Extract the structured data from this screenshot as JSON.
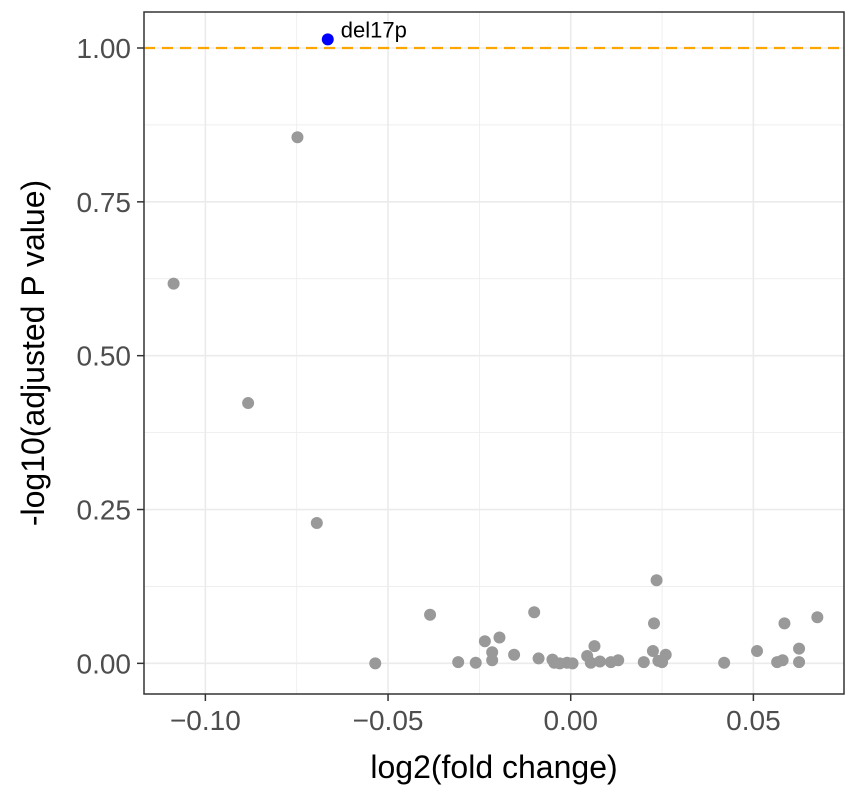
{
  "chart_data": {
    "type": "scatter",
    "title": "",
    "xlabel": "log2(fold change)",
    "ylabel": "-log10(adjusted P value)",
    "xlim": [
      -0.1168,
      0.0748
    ],
    "ylim": [
      -0.0498,
      1.0585
    ],
    "x_ticks": [
      -0.1,
      -0.05,
      0.0,
      0.05
    ],
    "x_tick_labels": [
      "−0.10",
      "−0.05",
      "0.00",
      "0.05"
    ],
    "y_ticks": [
      0.0,
      0.25,
      0.5,
      0.75,
      1.0
    ],
    "y_tick_labels": [
      "0.00",
      "0.25",
      "0.50",
      "0.75",
      "1.00"
    ],
    "grid": true,
    "threshold_line": {
      "y": 1.0,
      "color": "#FFA500",
      "style": "dashed"
    },
    "colors": {
      "default_point": "#999999",
      "highlight_point": "#0000FF",
      "panel_border": "#333333",
      "grid": "#EBEBEB"
    },
    "highlight": {
      "label": "del17p",
      "x": -0.0665,
      "y": 1.014
    },
    "points": [
      [
        -0.1087,
        0.617
      ],
      [
        -0.0883,
        0.423
      ],
      [
        -0.0748,
        0.855
      ],
      [
        -0.0695,
        0.228
      ],
      [
        -0.0535,
        0.0
      ],
      [
        -0.0385,
        0.079
      ],
      [
        -0.0308,
        0.002
      ],
      [
        -0.026,
        0.001
      ],
      [
        -0.0235,
        0.036
      ],
      [
        -0.0215,
        0.018
      ],
      [
        -0.0215,
        0.005
      ],
      [
        -0.0195,
        0.042
      ],
      [
        -0.0155,
        0.014
      ],
      [
        -0.01,
        0.083
      ],
      [
        -0.0088,
        0.008
      ],
      [
        -0.005,
        0.006
      ],
      [
        -0.0045,
        0.001
      ],
      [
        -0.003,
        0.0
      ],
      [
        -0.001,
        0.001
      ],
      [
        0.0005,
        0.0
      ],
      [
        0.0045,
        0.012
      ],
      [
        0.0055,
        0.001
      ],
      [
        0.0065,
        0.028
      ],
      [
        0.008,
        0.003
      ],
      [
        0.011,
        0.002
      ],
      [
        0.013,
        0.005
      ],
      [
        0.02,
        0.002
      ],
      [
        0.0225,
        0.02
      ],
      [
        0.0228,
        0.065
      ],
      [
        0.0235,
        0.135
      ],
      [
        0.024,
        0.004
      ],
      [
        0.025,
        0.002
      ],
      [
        0.026,
        0.014
      ],
      [
        0.042,
        0.001
      ],
      [
        0.051,
        0.02
      ],
      [
        0.0565,
        0.002
      ],
      [
        0.058,
        0.005
      ],
      [
        0.0585,
        0.065
      ],
      [
        0.0625,
        0.024
      ],
      [
        0.0625,
        0.002
      ],
      [
        0.0675,
        0.075
      ]
    ]
  }
}
